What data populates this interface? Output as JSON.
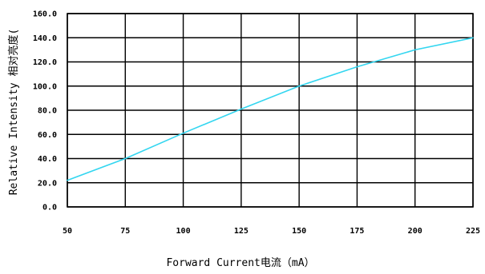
{
  "chart_data": {
    "type": "line",
    "title": "",
    "xlabel": "Forward Current电流（mA）",
    "ylabel": "Relative Intensity 相对亮度(",
    "x_ticks": [
      "50",
      "75",
      "100",
      "125",
      "150",
      "175",
      "200",
      "225"
    ],
    "y_ticks": [
      "0.0",
      "20.0",
      "40.0",
      "60.0",
      "80.0",
      "100.0",
      "120.0",
      "140.0",
      "160.0"
    ],
    "xlim": [
      50,
      225
    ],
    "ylim": [
      0,
      160
    ],
    "grid": true,
    "series": [
      {
        "color": "#33d6f0",
        "x": [
          50,
          75,
          100,
          125,
          150,
          175,
          200,
          225
        ],
        "y": [
          22,
          40,
          61,
          81,
          100,
          116,
          130,
          140
        ]
      }
    ]
  }
}
